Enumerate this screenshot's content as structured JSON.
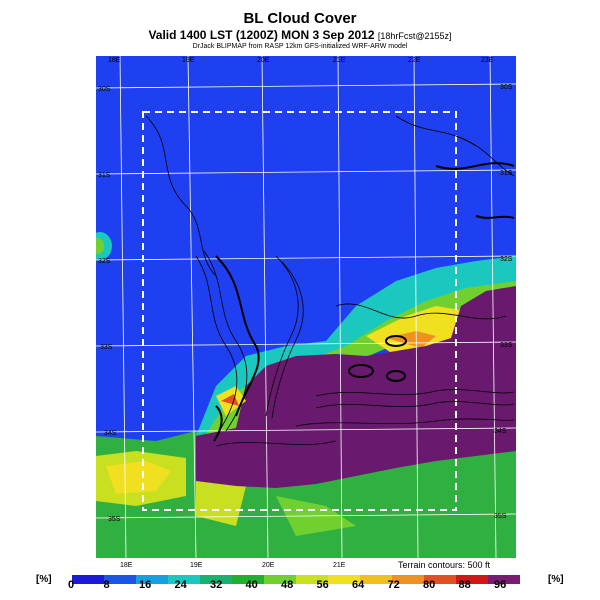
{
  "header": {
    "title": "BL Cloud Cover",
    "subtitle_main": "Valid 1400 LST (1200Z) MON 3 Sep 2012",
    "subtitle_small": "[18hrFcst@2155z]",
    "credit": "DrJack BLIPMAP from RASP 12km GFS-initialized WRF-ARW model"
  },
  "map": {
    "top_lon_labels": [
      "18E",
      "19E",
      "20E",
      "21E",
      "22E",
      "23E"
    ],
    "bottom_lon_labels": [
      "18E",
      "19E",
      "20E",
      "21E"
    ],
    "right_lat_labels": [
      "30S",
      "31S",
      "32S",
      "33S",
      "34S",
      "35S"
    ],
    "left_lat_labels": [
      "30S",
      "31S",
      "32S",
      "33S",
      "34S",
      "35S"
    ],
    "terrain_note": "Terrain contours: 500 ft",
    "colors": {
      "sea_blue": "#1a33e6",
      "clear_blue": "#1f40f0",
      "cloud_purple": "#6a1a6e",
      "green": "#49c23a",
      "yellow": "#f0e020",
      "red": "#e02020"
    }
  },
  "scale": {
    "unit_left": "[%]",
    "unit_right": "[%]",
    "ticks": [
      "0",
      "8",
      "16",
      "24",
      "32",
      "40",
      "48",
      "56",
      "64",
      "72",
      "80",
      "88",
      "96"
    ],
    "colors": [
      "#1a1ad8",
      "#1a55e6",
      "#15a0e0",
      "#1bc8c0",
      "#1ab070",
      "#20b030",
      "#70d030",
      "#c8e020",
      "#f0e020",
      "#f0c020",
      "#f09020",
      "#e05020",
      "#d01818",
      "#7a1a72"
    ]
  }
}
